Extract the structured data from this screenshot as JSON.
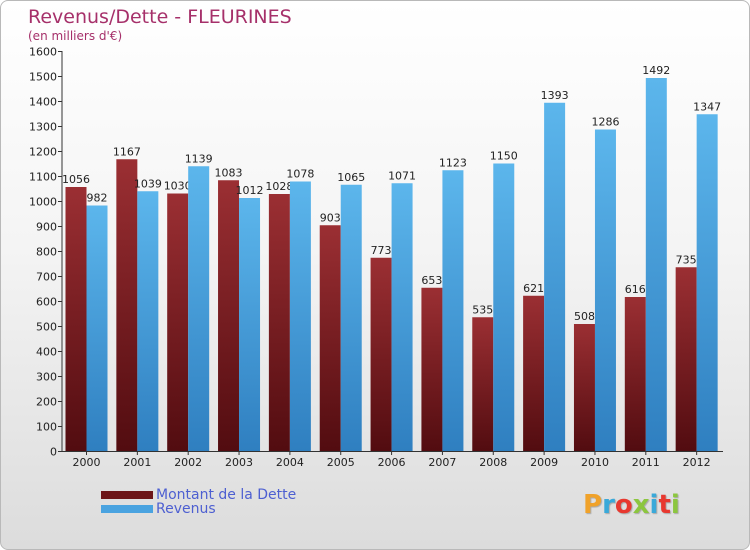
{
  "title": "Revenus/Dette - FLEURINES",
  "subtitle": "(en milliers d'€)",
  "logo": {
    "text": "Proxiti",
    "letter_colors": [
      "#f0a22a",
      "#3aa9d9",
      "#e8382f",
      "#8cc63f",
      "#3aa9d9",
      "#e8382f",
      "#8cc63f"
    ]
  },
  "chart_data": {
    "type": "bar",
    "title": "Revenus/Dette - FLEURINES",
    "ylabel": "(en milliers d'€)",
    "xlabel": "",
    "ylim": [
      0,
      1600
    ],
    "ytick_step": 100,
    "grid": false,
    "legend_position": "bottom-left",
    "categories": [
      "2000",
      "2001",
      "2002",
      "2003",
      "2004",
      "2005",
      "2006",
      "2007",
      "2008",
      "2009",
      "2010",
      "2011",
      "2012"
    ],
    "series": [
      {
        "name": "Montant de la Dette",
        "color": "#7a1e22",
        "values": [
          1056,
          1167,
          1030,
          1083,
          1028,
          903,
          773,
          653,
          535,
          621,
          508,
          616,
          735
        ]
      },
      {
        "name": "Revenus",
        "color": "#4aa3e0",
        "values": [
          982,
          1039,
          1139,
          1012,
          1078,
          1065,
          1071,
          1123,
          1150,
          1393,
          1286,
          1492,
          1347
        ]
      }
    ]
  }
}
